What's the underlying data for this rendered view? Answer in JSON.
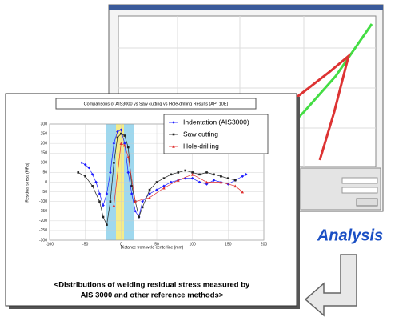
{
  "chart_data": {
    "type": "line",
    "title": "Comparisons of AIS3000 vs Saw cutting vs Hole-drilling Results (API 10E)",
    "x_label": "Distance from weld centerline (mm)",
    "y_label": "Residual stress (MPa)",
    "xlim": [
      -100,
      200
    ],
    "xticks": [
      -100,
      -50,
      0,
      50,
      100,
      150,
      200
    ],
    "ylim": [
      -300,
      300
    ],
    "yticks": [
      -300,
      -250,
      -200,
      -150,
      -100,
      -50,
      0,
      50,
      100,
      150,
      200,
      250,
      300
    ],
    "grid": true,
    "legend": "top-right",
    "series": [
      {
        "name": "Indentation (AIS3000)",
        "color": "#1a1aff",
        "marker": "diamond",
        "x": [
          -55,
          -50,
          -45,
          -40,
          -35,
          -30,
          -25,
          -20,
          -15,
          -10,
          -5,
          0,
          5,
          10,
          15,
          20,
          25,
          30,
          40,
          50,
          60,
          70,
          80,
          90,
          100,
          110,
          120,
          130,
          140,
          150,
          160,
          170,
          175
        ],
        "values": [
          100,
          90,
          75,
          40,
          0,
          -60,
          -120,
          -60,
          50,
          200,
          260,
          270,
          200,
          50,
          -60,
          -150,
          -180,
          -100,
          -60,
          -40,
          -20,
          0,
          10,
          20,
          20,
          0,
          -10,
          10,
          0,
          -10,
          10,
          30,
          40
        ]
      },
      {
        "name": "Saw cutting",
        "color": "#222222",
        "marker": "square",
        "x": [
          -60,
          -50,
          -40,
          -30,
          -25,
          -20,
          -15,
          -10,
          -5,
          0,
          5,
          10,
          15,
          20,
          25,
          30,
          40,
          50,
          60,
          70,
          80,
          90,
          100,
          110,
          120,
          130,
          140,
          150,
          160
        ],
        "values": [
          50,
          30,
          -20,
          -100,
          -180,
          -220,
          -100,
          100,
          230,
          250,
          240,
          180,
          -20,
          -100,
          -180,
          -130,
          -40,
          0,
          20,
          40,
          50,
          60,
          50,
          40,
          50,
          40,
          30,
          20,
          10
        ]
      },
      {
        "name": "Hole-drilling",
        "color": "#e03030",
        "marker": "triangle",
        "x": [
          -10,
          0,
          5,
          10,
          20,
          40,
          60,
          80,
          100,
          120,
          140,
          160,
          170
        ],
        "values": [
          -120,
          200,
          190,
          130,
          -100,
          -80,
          -30,
          10,
          40,
          0,
          0,
          -20,
          -50
        ]
      }
    ]
  },
  "label": "Analysis",
  "caption": [
    "<Distributions of welding residual stress measured by",
    "AIS 3000 and other reference methods>"
  ]
}
